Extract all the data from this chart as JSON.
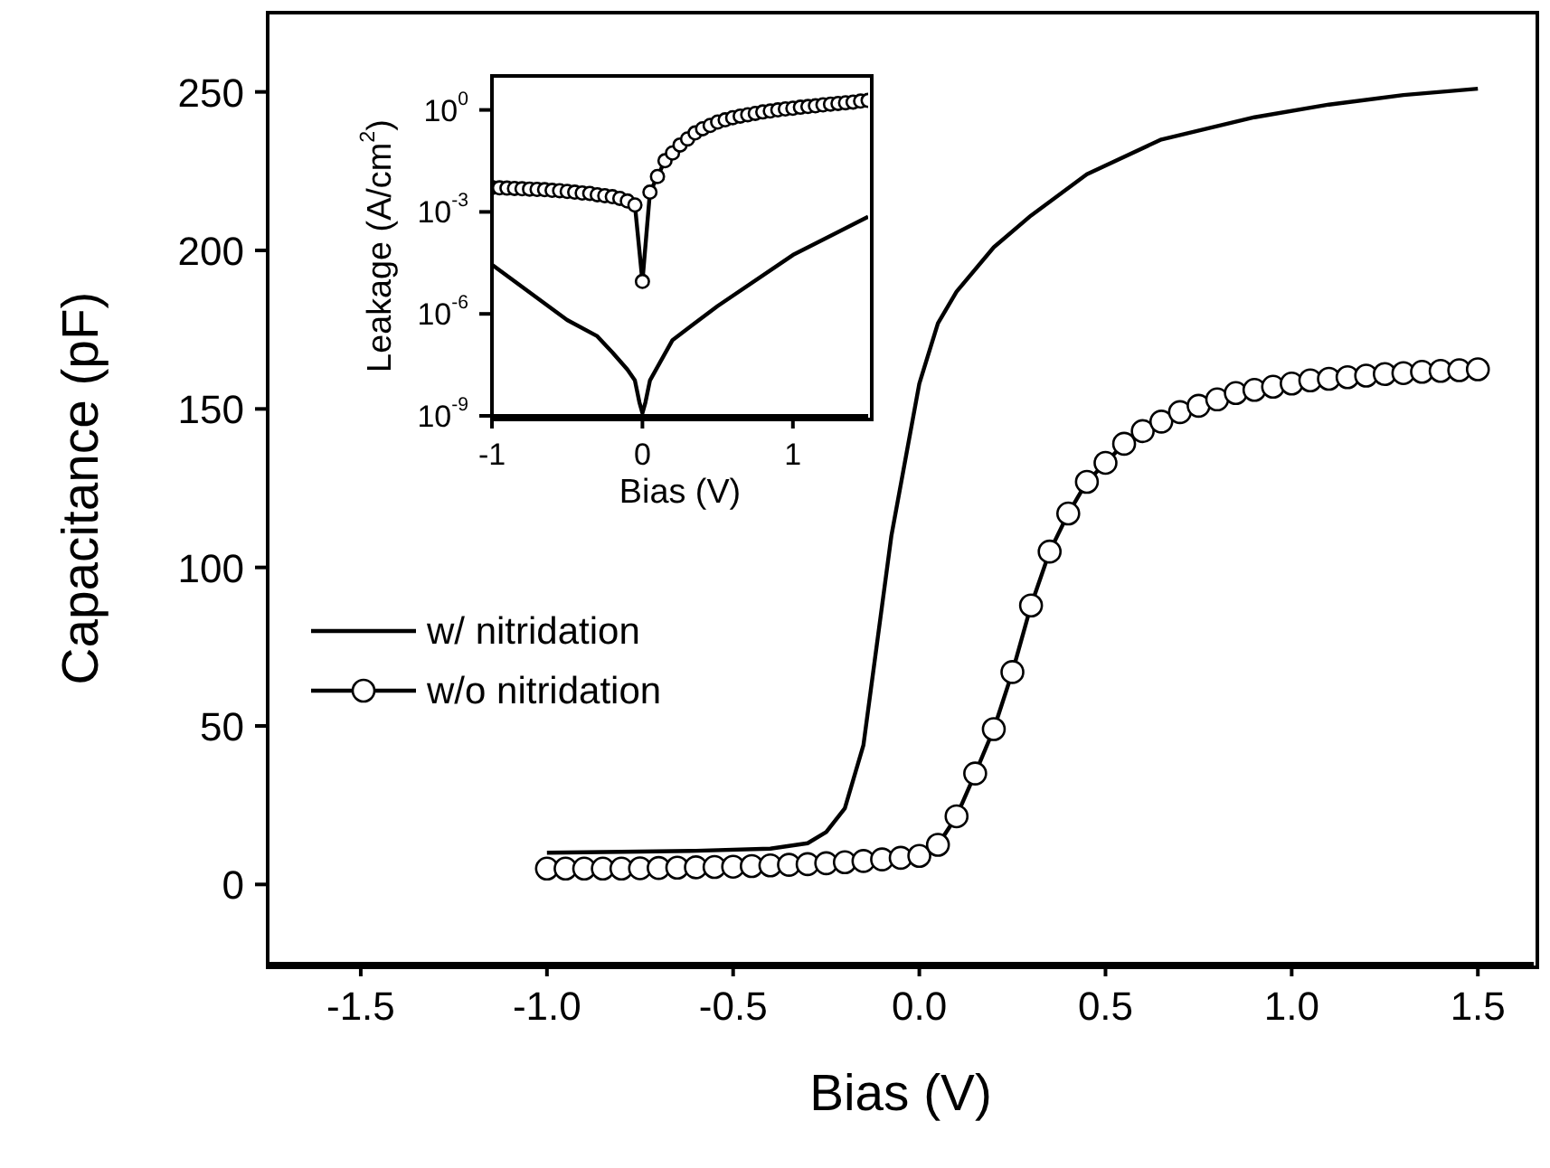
{
  "chart_data": [
    {
      "type": "line",
      "xlabel": "Bias (V)",
      "ylabel": "Capacitance (pF)",
      "xlim": [
        -1.75,
        1.65
      ],
      "ylim": [
        -25,
        275
      ],
      "xticks": [
        -1.5,
        {
          "value": -1,
          "label": "-1.0"
        },
        -0.5,
        {
          "value": 0,
          "label": "0.0"
        },
        0.5,
        {
          "value": 1,
          "label": "1.0"
        },
        1.5
      ],
      "yticks": [
        0,
        50,
        100,
        150,
        200,
        250
      ],
      "legend": "left",
      "grid": false,
      "series": [
        {
          "name": "w/ nitridation",
          "color": "#000000",
          "marker": "none",
          "x": [
            -1,
            -0.8,
            -0.6,
            -0.4,
            -0.3,
            -0.25,
            -0.2,
            -0.15,
            -0.1,
            -0.075,
            0,
            0.05,
            0.1,
            0.2,
            0.3,
            0.45,
            0.65,
            0.9,
            1.1,
            1.3,
            1.5
          ],
          "values": [
            10,
            10.3,
            10.6,
            11.3,
            13,
            16.5,
            24,
            44,
            88,
            110,
            158,
            177,
            187,
            201,
            211,
            224,
            235,
            242,
            246,
            249,
            251
          ]
        },
        {
          "name": "w/o nitridation",
          "color": "#000000",
          "marker": "circle",
          "x": [
            -1,
            -0.95,
            -0.9,
            -0.85,
            -0.8,
            -0.75,
            -0.7,
            -0.65,
            -0.6,
            -0.55,
            -0.5,
            -0.45,
            -0.4,
            -0.35,
            -0.3,
            -0.25,
            -0.2,
            -0.15,
            -0.1,
            -0.05,
            0,
            0.05,
            0.1,
            0.15,
            0.2,
            0.25,
            0.3,
            0.35,
            0.4,
            0.45,
            0.5,
            0.55,
            0.6,
            0.65,
            0.7,
            0.75,
            0.8,
            0.85,
            0.9,
            0.95,
            1,
            1.05,
            1.1,
            1.15,
            1.2,
            1.25,
            1.3,
            1.35,
            1.4,
            1.45,
            1.5
          ],
          "values": [
            5,
            5,
            5,
            5,
            5,
            5.1,
            5.2,
            5.3,
            5.4,
            5.5,
            5.6,
            5.8,
            6,
            6.2,
            6.4,
            6.7,
            7,
            7.4,
            7.9,
            8.4,
            9,
            12.5,
            21.5,
            35,
            49,
            67,
            88,
            105,
            117,
            127,
            133,
            139,
            143,
            146,
            149,
            151,
            153,
            155,
            156,
            157,
            158,
            159,
            159.5,
            160,
            160.5,
            161,
            161.3,
            161.7,
            162,
            162.2,
            162.5
          ]
        }
      ]
    },
    {
      "type": "line",
      "xlabel": "Bias (V)",
      "ylabel": "Leakage (A/cm$^{2}$)",
      "xlim": [
        -1,
        1.5
      ],
      "ylim": [
        1e-09,
        10
      ],
      "log": "y",
      "xticks": [
        -1,
        0,
        1
      ],
      "yticks": [
        {
          "value": 1e-09,
          "label": "10$^{-9}$"
        },
        {
          "value": 1e-06,
          "label": "10$^{-6}$"
        },
        {
          "value": 0.001,
          "label": "10$^{-3}$"
        },
        {
          "value": 1,
          "label": "10$^{0}$"
        }
      ],
      "grid": false,
      "series": [
        {
          "color": "#000000",
          "marker": "none",
          "x": [
            -1,
            -0.5,
            -0.3,
            -0.2,
            -0.1,
            -0.05,
            -0.02,
            0,
            0.02,
            0.05,
            0.2,
            0.5,
            1,
            1.5
          ],
          "values": [
            2.8e-05,
            6.6e-07,
            2.2e-07,
            7.4e-08,
            2.3e-08,
            1.1e-08,
            2.5e-09,
            1.2e-09,
            2.5e-09,
            1.1e-08,
            1.7e-07,
            1.7e-06,
            5.4e-05,
            0.00072
          ]
        },
        {
          "color": "#000000",
          "marker": "circle",
          "x": [
            -1,
            -0.95,
            -0.9,
            -0.85,
            -0.8,
            -0.75,
            -0.7,
            -0.65,
            -0.6,
            -0.55,
            -0.5,
            -0.45,
            -0.4,
            -0.35,
            -0.3,
            -0.25,
            -0.2,
            -0.15,
            -0.1,
            -0.05,
            0,
            0.05,
            0.1,
            0.15,
            0.2,
            0.25,
            0.3,
            0.35,
            0.4,
            0.45,
            0.5,
            0.55,
            0.6,
            0.65,
            0.7,
            0.75,
            0.8,
            0.85,
            0.9,
            0.95,
            1,
            1.05,
            1.1,
            1.15,
            1.2,
            1.25,
            1.3,
            1.35,
            1.4,
            1.45,
            1.5
          ],
          "values": [
            0.0052,
            0.0051,
            0.005,
            0.0049,
            0.0048,
            0.0047,
            0.0046,
            0.0045,
            0.0043,
            0.0042,
            0.004,
            0.0038,
            0.0036,
            0.0035,
            0.0032,
            0.003,
            0.0028,
            0.0025,
            0.0021,
            0.0016,
            9e-06,
            0.0038,
            0.011,
            0.032,
            0.054,
            0.093,
            0.14,
            0.21,
            0.28,
            0.35,
            0.44,
            0.51,
            0.59,
            0.66,
            0.72,
            0.79,
            0.87,
            0.93,
            1.0,
            1.07,
            1.12,
            1.2,
            1.26,
            1.32,
            1.41,
            1.48,
            1.55,
            1.62,
            1.7,
            1.82,
            1.9
          ]
        }
      ]
    }
  ]
}
